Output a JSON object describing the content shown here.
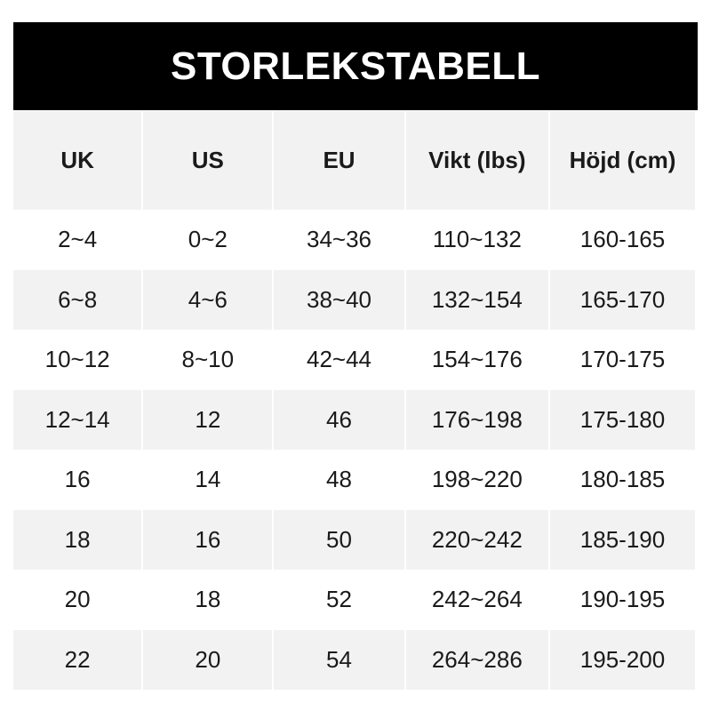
{
  "title": "STORLEKSTABELL",
  "headers": [
    "UK",
    "US",
    "EU",
    "Vikt (lbs)",
    "Höjd (cm)"
  ],
  "rows": [
    [
      "2~4",
      "0~2",
      "34~36",
      "110~132",
      "160-165"
    ],
    [
      "6~8",
      "4~6",
      "38~40",
      "132~154",
      "165-170"
    ],
    [
      "10~12",
      "8~10",
      "42~44",
      "154~176",
      "170-175"
    ],
    [
      "12~14",
      "12",
      "46",
      "176~198",
      "175-180"
    ],
    [
      "16",
      "14",
      "48",
      "198~220",
      "180-185"
    ],
    [
      "18",
      "16",
      "50",
      "220~242",
      "185-190"
    ],
    [
      "20",
      "18",
      "52",
      "242~264",
      "190-195"
    ],
    [
      "22",
      "20",
      "54",
      "264~286",
      "195-200"
    ]
  ]
}
